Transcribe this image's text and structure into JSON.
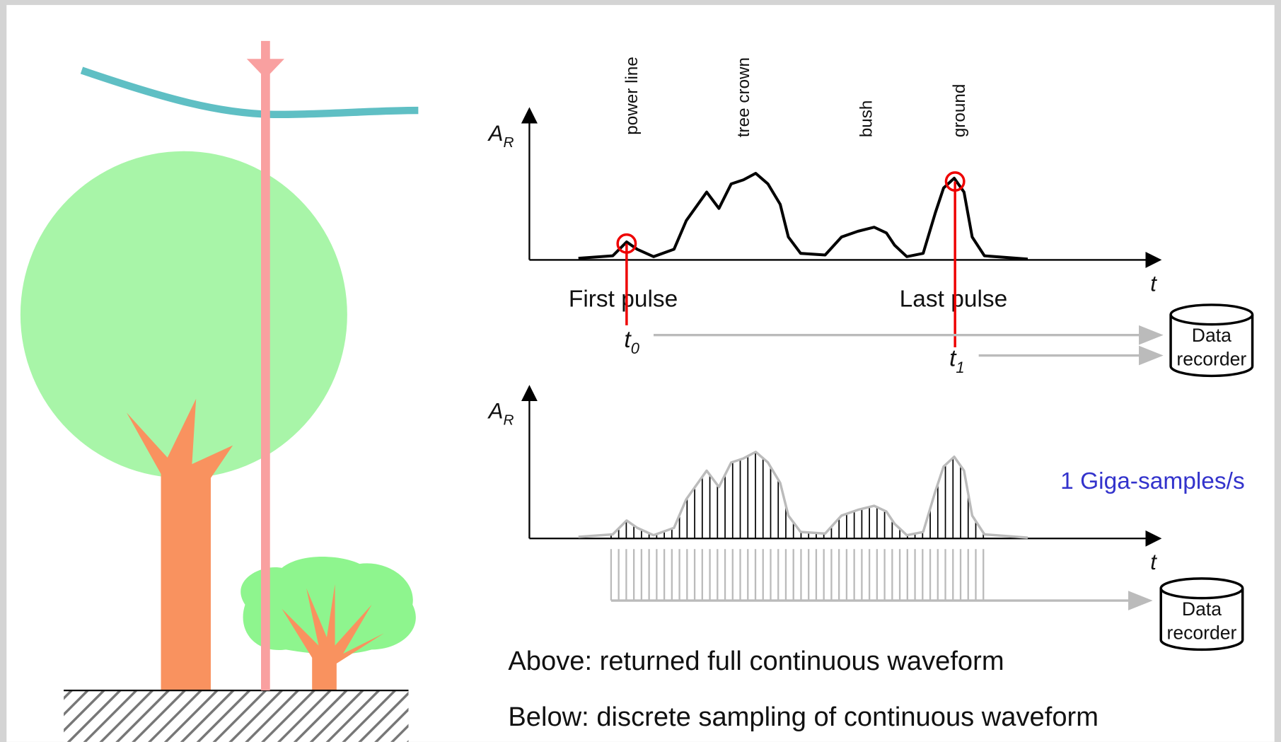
{
  "labels": {
    "power_line": "power line",
    "tree_crown": "tree crown",
    "bush": "bush",
    "ground": "ground"
  },
  "top_plot": {
    "y_axis": {
      "main": "A",
      "sub": "R"
    },
    "x_axis": "t",
    "first_pulse": "First pulse",
    "last_pulse": "Last pulse",
    "t0": {
      "main": "t",
      "sub": "0"
    },
    "t1": {
      "main": "t",
      "sub": "1"
    },
    "recorder": [
      "Data",
      "recorder"
    ]
  },
  "bottom_plot": {
    "y_axis": {
      "main": "A",
      "sub": "R"
    },
    "x_axis": "t",
    "rate": "1 Giga-samples/s",
    "recorder": [
      "Data",
      "recorder"
    ]
  },
  "captions": {
    "above": "Above: returned full continuous waveform",
    "below": "Below: discrete sampling of continuous waveform"
  }
}
